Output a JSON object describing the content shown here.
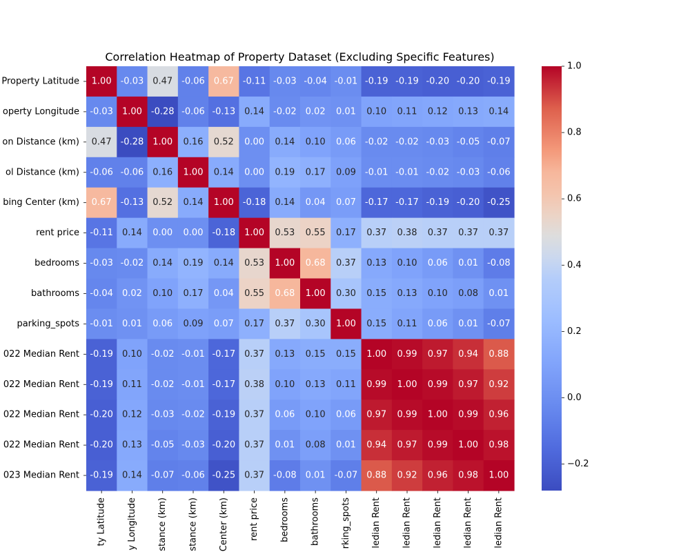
{
  "chart_data": {
    "type": "heatmap",
    "title": "Correlation Heatmap of Property Dataset (Excluding Specific Features)",
    "row_labels": [
      "Property Latitude",
      "operty Longitude",
      "on Distance (km)",
      "ol Distance (km)",
      "bing Center (km)",
      "rent price",
      "bedrooms",
      "bathrooms",
      "parking_spots",
      "022 Median Rent",
      "022 Median Rent",
      "022 Median Rent",
      "022 Median Rent",
      "023 Median Rent"
    ],
    "col_labels": [
      "ty Latitude",
      "y Longitude",
      "stance (km)",
      "stance (km)",
      "Center (km)",
      "rent price",
      "bedrooms",
      "bathrooms",
      "rking_spots",
      "ledian Rent",
      "ledian Rent",
      "ledian Rent",
      "ledian Rent",
      "ledian Rent"
    ],
    "values": [
      [
        1.0,
        -0.03,
        0.47,
        -0.06,
        0.67,
        -0.11,
        -0.03,
        -0.04,
        -0.01,
        -0.19,
        -0.19,
        -0.2,
        -0.2,
        -0.19
      ],
      [
        -0.03,
        1.0,
        -0.28,
        -0.06,
        -0.13,
        0.14,
        -0.02,
        0.02,
        0.01,
        0.1,
        0.11,
        0.12,
        0.13,
        0.14
      ],
      [
        0.47,
        -0.28,
        1.0,
        0.16,
        0.52,
        -0.0,
        0.14,
        0.1,
        0.06,
        -0.02,
        -0.02,
        -0.03,
        -0.05,
        -0.07
      ],
      [
        -0.06,
        -0.06,
        0.16,
        1.0,
        0.14,
        0.0,
        0.19,
        0.17,
        0.09,
        -0.01,
        -0.01,
        -0.02,
        -0.03,
        -0.06
      ],
      [
        0.67,
        -0.13,
        0.52,
        0.14,
        1.0,
        -0.18,
        0.14,
        0.04,
        0.07,
        -0.17,
        -0.17,
        -0.19,
        -0.2,
        -0.25
      ],
      [
        -0.11,
        0.14,
        -0.0,
        0.0,
        -0.18,
        1.0,
        0.53,
        0.55,
        0.17,
        0.37,
        0.38,
        0.37,
        0.37,
        0.37
      ],
      [
        -0.03,
        -0.02,
        0.14,
        0.19,
        0.14,
        0.53,
        1.0,
        0.68,
        0.37,
        0.13,
        0.1,
        0.06,
        0.01,
        -0.08
      ],
      [
        -0.04,
        0.02,
        0.1,
        0.17,
        0.04,
        0.55,
        0.68,
        1.0,
        0.3,
        0.15,
        0.13,
        0.1,
        0.08,
        0.01
      ],
      [
        -0.01,
        0.01,
        0.06,
        0.09,
        0.07,
        0.17,
        0.37,
        0.3,
        1.0,
        0.15,
        0.11,
        0.06,
        0.01,
        -0.07
      ],
      [
        -0.19,
        0.1,
        -0.02,
        -0.01,
        -0.17,
        0.37,
        0.13,
        0.15,
        0.15,
        1.0,
        0.99,
        0.97,
        0.94,
        0.88
      ],
      [
        -0.19,
        0.11,
        -0.02,
        -0.01,
        -0.17,
        0.38,
        0.1,
        0.13,
        0.11,
        0.99,
        1.0,
        0.99,
        0.97,
        0.92
      ],
      [
        -0.2,
        0.12,
        -0.03,
        -0.02,
        -0.19,
        0.37,
        0.06,
        0.1,
        0.06,
        0.97,
        0.99,
        1.0,
        0.99,
        0.96
      ],
      [
        -0.2,
        0.13,
        -0.05,
        -0.03,
        -0.2,
        0.37,
        0.01,
        0.08,
        0.01,
        0.94,
        0.97,
        0.99,
        1.0,
        0.98
      ],
      [
        -0.19,
        0.14,
        -0.07,
        -0.06,
        -0.25,
        0.37,
        -0.08,
        0.01,
        -0.07,
        0.88,
        0.92,
        0.96,
        0.98,
        1.0
      ]
    ],
    "colormap": "coolwarm",
    "vmin": -0.28,
    "vmax": 1.0,
    "colorbar_ticks": [
      1.0,
      0.8,
      0.6,
      0.4,
      0.2,
      0.0,
      -0.2
    ],
    "colorbar_tick_labels": [
      "1.0",
      "0.8",
      "0.6",
      "0.4",
      "0.2",
      "0.0",
      "−0.2"
    ],
    "annotations": "cell values shown with 2 decimals",
    "grid": false
  }
}
